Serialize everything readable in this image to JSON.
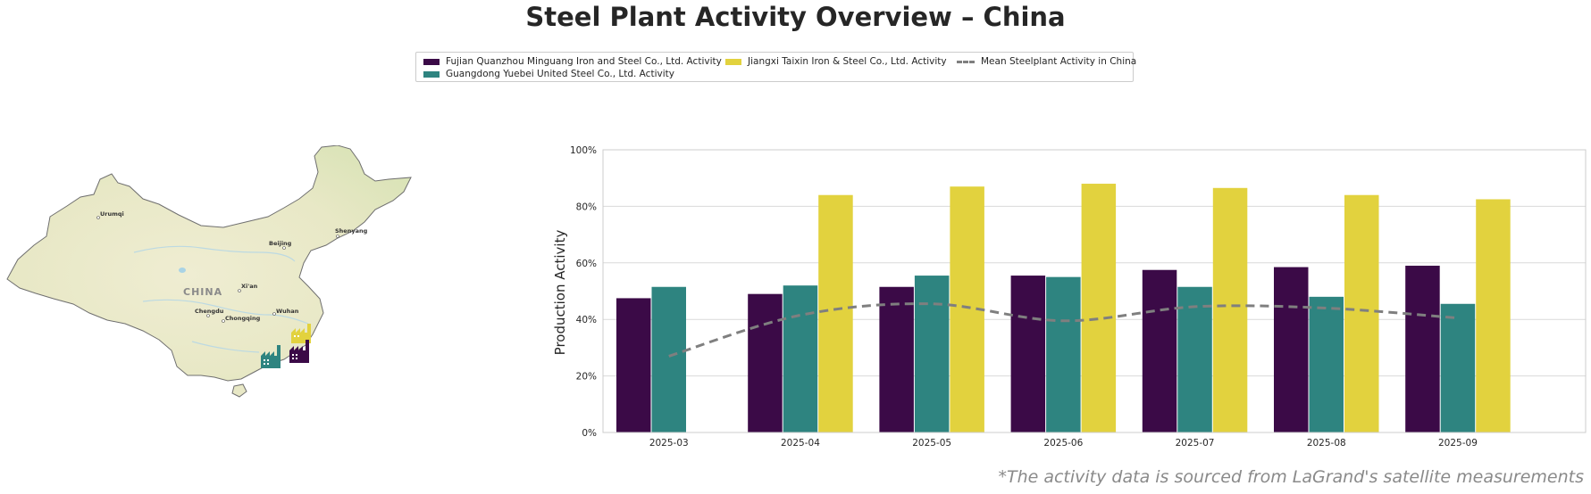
{
  "title": "Steel Plant Activity Overview – China",
  "footnote": "*The activity data is sourced from LaGrand's satellite measurements",
  "colors": {
    "fujian": "#3b0a47",
    "guangdong": "#2e8480",
    "jiangxi": "#e2d23e",
    "mean": "#7f7f7f"
  },
  "map": {
    "country_label": "CHINA",
    "cities": [
      "Urumqi",
      "Beijing",
      "Shenyang",
      "Xi'an",
      "Chengdu",
      "Chongqing",
      "Wuhan"
    ],
    "icons": [
      "factory-icon-fujian",
      "factory-icon-guangdong",
      "factory-icon-jiangxi"
    ]
  },
  "chart_data": {
    "type": "bar",
    "ylabel": "Production Activity",
    "ylim": [
      0,
      100
    ],
    "yticks": [
      "0%",
      "20%",
      "40%",
      "60%",
      "80%",
      "100%"
    ],
    "grid": true,
    "legend_placement": "top-center",
    "categories": [
      "2025-03",
      "2025-04",
      "2025-05",
      "2025-06",
      "2025-07",
      "2025-08",
      "2025-09"
    ],
    "series": [
      {
        "name": "Fujian Quanzhou Minguang Iron and Steel Co., Ltd. Activity",
        "type": "bar",
        "values": [
          47.5,
          49,
          51.5,
          55.5,
          57.5,
          58.5,
          59
        ]
      },
      {
        "name": "Guangdong Yuebei United Steel Co., Ltd. Activity",
        "type": "bar",
        "values": [
          51.5,
          52,
          55.5,
          55,
          51.5,
          48,
          45.5
        ]
      },
      {
        "name": "Jiangxi Taixin Iron & Steel Co., Ltd. Activity",
        "type": "bar",
        "values": [
          null,
          84,
          87,
          88,
          86.5,
          84,
          82.5
        ]
      },
      {
        "name": "Mean Steelplant Activity in China",
        "type": "line",
        "values": [
          27,
          41.5,
          45.5,
          39.5,
          44.5,
          44,
          40.5
        ]
      }
    ]
  }
}
